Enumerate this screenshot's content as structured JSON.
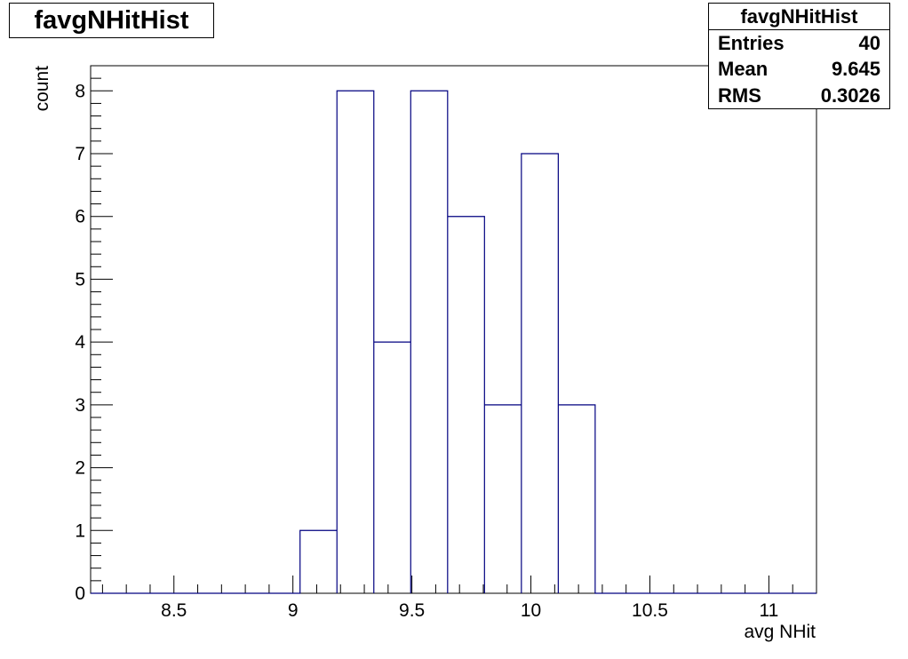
{
  "title": "favgNHitHist",
  "stats": {
    "title": "favgNHitHist",
    "rows": [
      {
        "label": "Entries",
        "value": "40"
      },
      {
        "label": "Mean",
        "value": "9.645"
      },
      {
        "label": "RMS",
        "value": "0.3026"
      }
    ]
  },
  "chart_data": {
    "type": "bar",
    "histogram": true,
    "xlabel": "avg NHit",
    "ylabel": "count",
    "xlim": [
      8.15,
      11.2
    ],
    "ylim": [
      0,
      8.4
    ],
    "x_ticks": [
      8.5,
      9,
      9.5,
      10,
      10.5,
      11
    ],
    "x_tick_labels": [
      "8.5",
      "9",
      "9.5",
      "10",
      "10.5",
      "11"
    ],
    "y_ticks": [
      0,
      1,
      2,
      3,
      4,
      5,
      6,
      7,
      8
    ],
    "y_tick_labels": [
      "0",
      "1",
      "2",
      "3",
      "4",
      "5",
      "6",
      "7",
      "8"
    ],
    "bins": [
      {
        "low": 9.03,
        "high": 9.185,
        "count": 1
      },
      {
        "low": 9.185,
        "high": 9.34,
        "count": 8
      },
      {
        "low": 9.34,
        "high": 9.495,
        "count": 4
      },
      {
        "low": 9.495,
        "high": 9.65,
        "count": 8
      },
      {
        "low": 9.65,
        "high": 9.805,
        "count": 6
      },
      {
        "low": 9.805,
        "high": 9.96,
        "count": 3
      },
      {
        "low": 9.96,
        "high": 10.115,
        "count": 7
      },
      {
        "low": 10.115,
        "high": 10.27,
        "count": 3
      }
    ],
    "line_color": "#000080",
    "grid": false,
    "legend": "none"
  }
}
